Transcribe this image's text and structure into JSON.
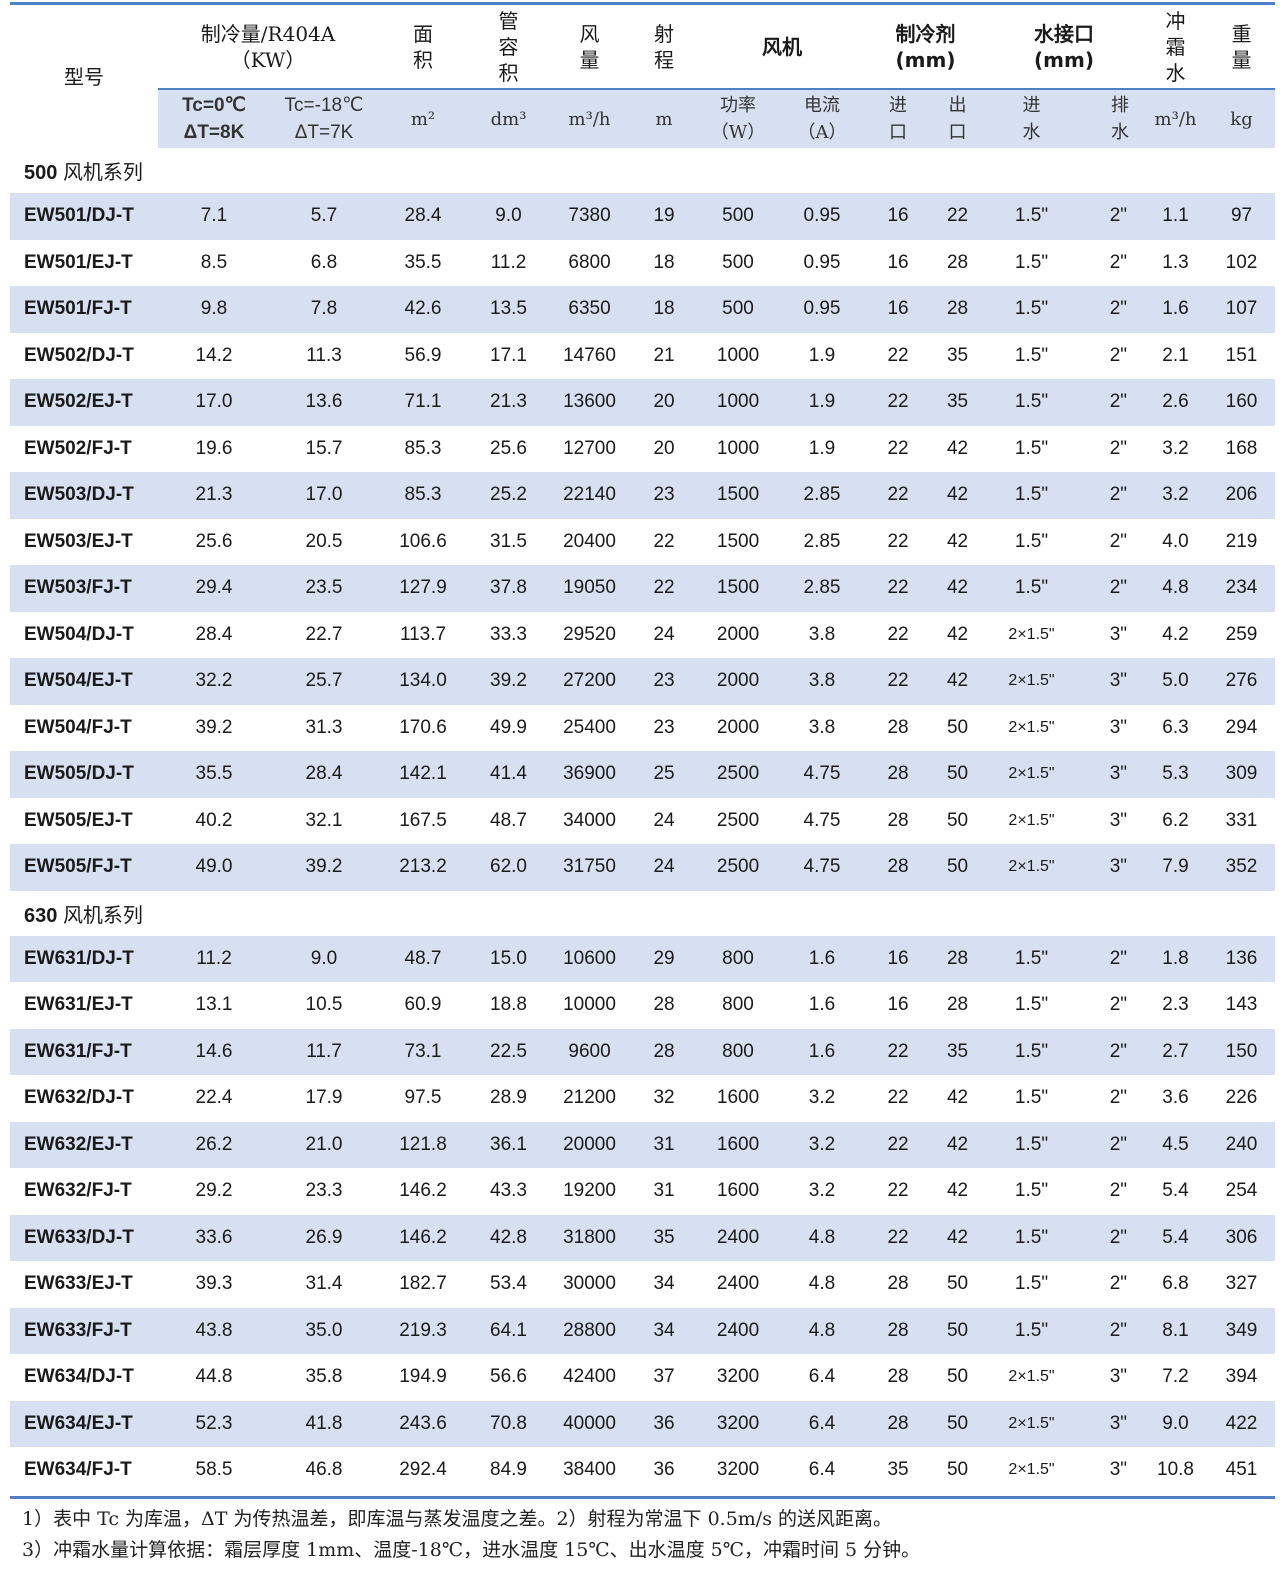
{
  "header": {
    "model": "型号",
    "capacity": "制冷量/R404A",
    "capacity_unit": "（KW）",
    "area": "面积",
    "tube_volume": "管容积",
    "airflow": "风量",
    "throw": "射程",
    "fan": "风机",
    "refrigerant": "制冷剂",
    "refrigerant_unit": "(mm)",
    "water": "水接口",
    "water_unit": "(mm)",
    "defrost": "冲霜水",
    "weight": "重量",
    "sub": {
      "tc0_a": "Tc=0℃",
      "tc0_b": "ΔT=8K",
      "tc18_a": "Tc=-18℃",
      "tc18_b": "ΔT=7K",
      "area": "m²",
      "volume": "dm³",
      "airflow": "m³/h",
      "throw": "m",
      "power_a": "功率",
      "power_b": "（W）",
      "current_a": "电流",
      "current_b": "（A）",
      "in_a": "进",
      "in_b": "口",
      "out_a": "出",
      "out_b": "口",
      "win_a": "进",
      "win_b": "水",
      "wout_a": "排",
      "wout_b": "水",
      "defrost": "m³/h",
      "weight": "kg"
    }
  },
  "sections": [
    {
      "num": "500",
      "label": "风机系列",
      "rows": [
        [
          "EW501/DJ-T",
          "7.1",
          "5.7",
          "28.4",
          "9.0",
          "7380",
          "19",
          "500",
          "0.95",
          "16",
          "22",
          "1.5\"",
          "2\"",
          "1.1",
          "97"
        ],
        [
          "EW501/EJ-T",
          "8.5",
          "6.8",
          "35.5",
          "11.2",
          "6800",
          "18",
          "500",
          "0.95",
          "16",
          "28",
          "1.5\"",
          "2\"",
          "1.3",
          "102"
        ],
        [
          "EW501/FJ-T",
          "9.8",
          "7.8",
          "42.6",
          "13.5",
          "6350",
          "18",
          "500",
          "0.95",
          "16",
          "28",
          "1.5\"",
          "2\"",
          "1.6",
          "107"
        ],
        [
          "EW502/DJ-T",
          "14.2",
          "11.3",
          "56.9",
          "17.1",
          "14760",
          "21",
          "1000",
          "1.9",
          "22",
          "35",
          "1.5\"",
          "2\"",
          "2.1",
          "151"
        ],
        [
          "EW502/EJ-T",
          "17.0",
          "13.6",
          "71.1",
          "21.3",
          "13600",
          "20",
          "1000",
          "1.9",
          "22",
          "35",
          "1.5\"",
          "2\"",
          "2.6",
          "160"
        ],
        [
          "EW502/FJ-T",
          "19.6",
          "15.7",
          "85.3",
          "25.6",
          "12700",
          "20",
          "1000",
          "1.9",
          "22",
          "42",
          "1.5\"",
          "2\"",
          "3.2",
          "168"
        ],
        [
          "EW503/DJ-T",
          "21.3",
          "17.0",
          "85.3",
          "25.2",
          "22140",
          "23",
          "1500",
          "2.85",
          "22",
          "42",
          "1.5\"",
          "2\"",
          "3.2",
          "206"
        ],
        [
          "EW503/EJ-T",
          "25.6",
          "20.5",
          "106.6",
          "31.5",
          "20400",
          "22",
          "1500",
          "2.85",
          "22",
          "42",
          "1.5\"",
          "2\"",
          "4.0",
          "219"
        ],
        [
          "EW503/FJ-T",
          "29.4",
          "23.5",
          "127.9",
          "37.8",
          "19050",
          "22",
          "1500",
          "2.85",
          "22",
          "42",
          "1.5\"",
          "2\"",
          "4.8",
          "234"
        ],
        [
          "EW504/DJ-T",
          "28.4",
          "22.7",
          "113.7",
          "33.3",
          "29520",
          "24",
          "2000",
          "3.8",
          "22",
          "42",
          "2×1.5\"",
          "3\"",
          "4.2",
          "259"
        ],
        [
          "EW504/EJ-T",
          "32.2",
          "25.7",
          "134.0",
          "39.2",
          "27200",
          "23",
          "2000",
          "3.8",
          "22",
          "42",
          "2×1.5\"",
          "3\"",
          "5.0",
          "276"
        ],
        [
          "EW504/FJ-T",
          "39.2",
          "31.3",
          "170.6",
          "49.9",
          "25400",
          "23",
          "2000",
          "3.8",
          "28",
          "50",
          "2×1.5\"",
          "3\"",
          "6.3",
          "294"
        ],
        [
          "EW505/DJ-T",
          "35.5",
          "28.4",
          "142.1",
          "41.4",
          "36900",
          "25",
          "2500",
          "4.75",
          "28",
          "50",
          "2×1.5\"",
          "3\"",
          "5.3",
          "309"
        ],
        [
          "EW505/EJ-T",
          "40.2",
          "32.1",
          "167.5",
          "48.7",
          "34000",
          "24",
          "2500",
          "4.75",
          "28",
          "50",
          "2×1.5\"",
          "3\"",
          "6.2",
          "331"
        ],
        [
          "EW505/FJ-T",
          "49.0",
          "39.2",
          "213.2",
          "62.0",
          "31750",
          "24",
          "2500",
          "4.75",
          "28",
          "50",
          "2×1.5\"",
          "3\"",
          "7.9",
          "352"
        ]
      ]
    },
    {
      "num": "630",
      "label": "风机系列",
      "rows": [
        [
          "EW631/DJ-T",
          "11.2",
          "9.0",
          "48.7",
          "15.0",
          "10600",
          "29",
          "800",
          "1.6",
          "16",
          "28",
          "1.5\"",
          "2\"",
          "1.8",
          "136"
        ],
        [
          "EW631/EJ-T",
          "13.1",
          "10.5",
          "60.9",
          "18.8",
          "10000",
          "28",
          "800",
          "1.6",
          "16",
          "28",
          "1.5\"",
          "2\"",
          "2.3",
          "143"
        ],
        [
          "EW631/FJ-T",
          "14.6",
          "11.7",
          "73.1",
          "22.5",
          "9600",
          "28",
          "800",
          "1.6",
          "22",
          "35",
          "1.5\"",
          "2\"",
          "2.7",
          "150"
        ],
        [
          "EW632/DJ-T",
          "22.4",
          "17.9",
          "97.5",
          "28.9",
          "21200",
          "32",
          "1600",
          "3.2",
          "22",
          "42",
          "1.5\"",
          "2\"",
          "3.6",
          "226"
        ],
        [
          "EW632/EJ-T",
          "26.2",
          "21.0",
          "121.8",
          "36.1",
          "20000",
          "31",
          "1600",
          "3.2",
          "22",
          "42",
          "1.5\"",
          "2\"",
          "4.5",
          "240"
        ],
        [
          "EW632/FJ-T",
          "29.2",
          "23.3",
          "146.2",
          "43.3",
          "19200",
          "31",
          "1600",
          "3.2",
          "22",
          "42",
          "1.5\"",
          "2\"",
          "5.4",
          "254"
        ],
        [
          "EW633/DJ-T",
          "33.6",
          "26.9",
          "146.2",
          "42.8",
          "31800",
          "35",
          "2400",
          "4.8",
          "22",
          "42",
          "1.5\"",
          "2\"",
          "5.4",
          "306"
        ],
        [
          "EW633/EJ-T",
          "39.3",
          "31.4",
          "182.7",
          "53.4",
          "30000",
          "34",
          "2400",
          "4.8",
          "28",
          "50",
          "1.5\"",
          "2\"",
          "6.8",
          "327"
        ],
        [
          "EW633/FJ-T",
          "43.8",
          "35.0",
          "219.3",
          "64.1",
          "28800",
          "34",
          "2400",
          "4.8",
          "28",
          "50",
          "1.5\"",
          "2\"",
          "8.1",
          "349"
        ],
        [
          "EW634/DJ-T",
          "44.8",
          "35.8",
          "194.9",
          "56.6",
          "42400",
          "37",
          "3200",
          "6.4",
          "28",
          "50",
          "2×1.5\"",
          "3\"",
          "7.2",
          "394"
        ],
        [
          "EW634/EJ-T",
          "52.3",
          "41.8",
          "243.6",
          "70.8",
          "40000",
          "36",
          "3200",
          "6.4",
          "28",
          "50",
          "2×1.5\"",
          "3\"",
          "9.0",
          "422"
        ],
        [
          "EW634/FJ-T",
          "58.5",
          "46.8",
          "292.4",
          "84.9",
          "38400",
          "36",
          "3200",
          "6.4",
          "35",
          "50",
          "2×1.5\"",
          "3\"",
          "10.8",
          "451"
        ]
      ]
    }
  ],
  "notes": [
    "1）表中 Tc 为库温，ΔT 为传热温差，即库温与蒸发温度之差。2）射程为常温下 0.5m/s 的送风距离。",
    "3）冲霜水量计算依据：霜层厚度 1mm、温度-18℃，进水温度 15℃、出水温度 5℃，冲霜时间 5 分钟。"
  ],
  "colors": {
    "rule": "#4f7fc4",
    "stripe": "#d6e0f1"
  }
}
